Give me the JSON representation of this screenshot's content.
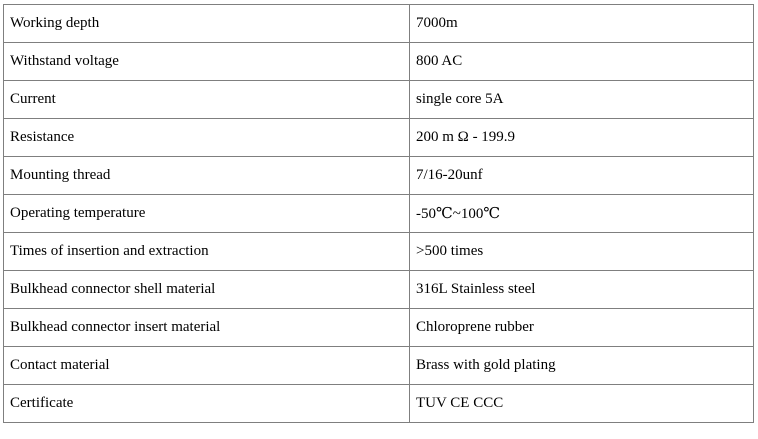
{
  "table": {
    "rows": [
      [
        "Working depth",
        "7000m"
      ],
      [
        "Withstand voltage",
        "800 AC"
      ],
      [
        "Current",
        "single core 5A"
      ],
      [
        "Resistance",
        "200 m Ω - 199.9"
      ],
      [
        "Mounting thread",
        "7/16-20unf"
      ],
      [
        "Operating temperature",
        "-50℃~100℃"
      ],
      [
        "Times of insertion and extraction",
        ">500 times"
      ],
      [
        "Bulkhead connector shell material",
        "316L Stainless steel"
      ],
      [
        "Bulkhead connector insert material",
        "Chloroprene rubber"
      ],
      [
        "Contact material",
        "Brass with gold plating"
      ],
      [
        "Certificate",
        "TUV CE CCC"
      ]
    ]
  }
}
